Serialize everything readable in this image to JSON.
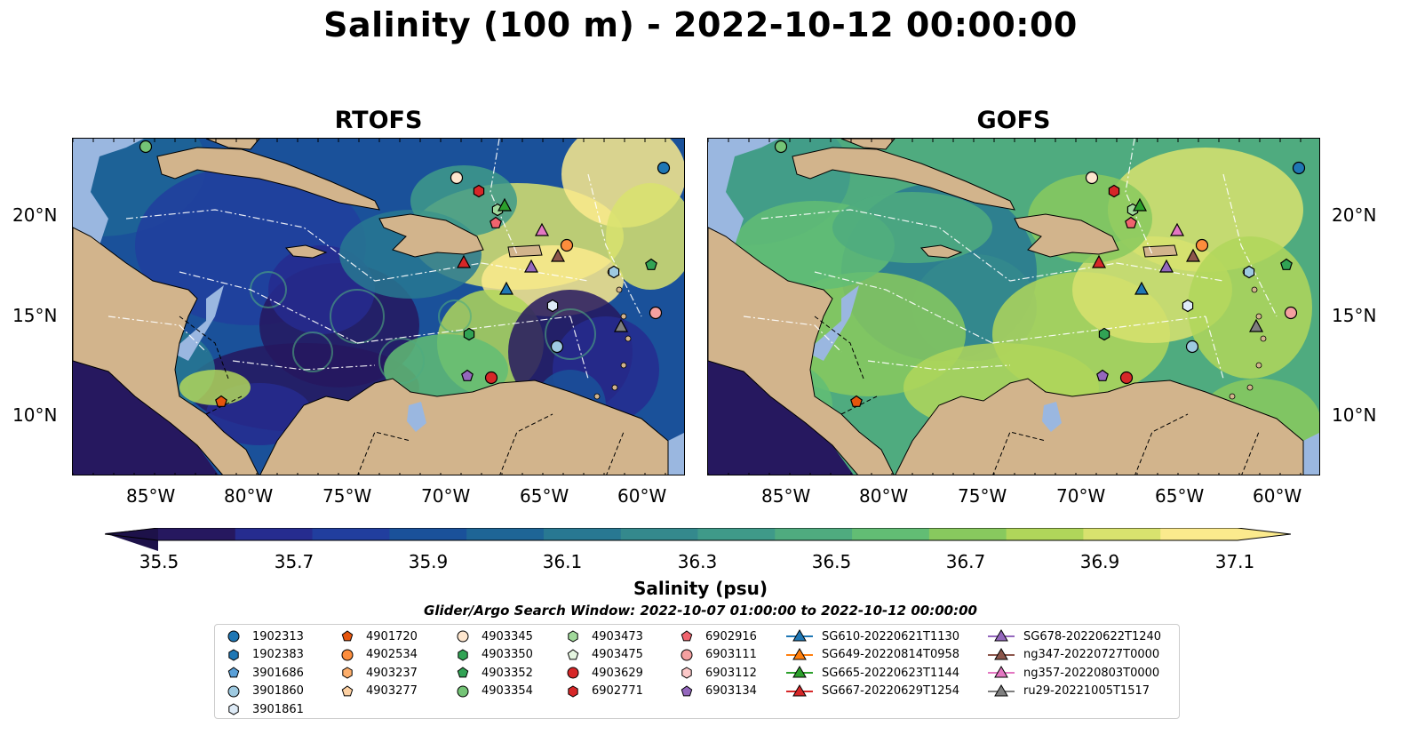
{
  "title": "Salinity (100 m) - 2022-10-12 00:00:00",
  "panels": [
    {
      "title": "RTOFS"
    },
    {
      "title": "GOFS"
    }
  ],
  "lat_labels": [
    "20°N",
    "15°N",
    "10°N"
  ],
  "lon_labels": [
    "85°W",
    "80°W",
    "75°W",
    "70°W",
    "65°W",
    "60°W"
  ],
  "colorbar": {
    "ticks": [
      "35.5",
      "35.7",
      "35.9",
      "36.1",
      "36.3",
      "36.5",
      "36.7",
      "36.9",
      "37.1"
    ],
    "label": "Salinity (psu)",
    "colors": [
      "#26185f",
      "#262c8f",
      "#213e9e",
      "#1a519a",
      "#1e6596",
      "#287892",
      "#34898d",
      "#3f9a89",
      "#4fab7f",
      "#62bd74",
      "#88c95e",
      "#b0d65a",
      "#d8e26e",
      "#fbea8d"
    ]
  },
  "search_window": "Glider/Argo Search Window: 2022-10-07 01:00:00 to 2022-10-12 00:00:00",
  "legend": {
    "columns": [
      [
        {
          "label": "1902313",
          "marker": "circle",
          "color": "#1f77b4"
        },
        {
          "label": "1902383",
          "marker": "hexagon",
          "color": "#1f77b4"
        },
        {
          "label": "3901686",
          "marker": "pentagon",
          "color": "#5aa0d8"
        },
        {
          "label": "3901860",
          "marker": "circle",
          "color": "#9ecae1"
        },
        {
          "label": "3901861",
          "marker": "hexagon",
          "color": "#deebf7"
        }
      ],
      [
        {
          "label": "4901720",
          "marker": "pentagon",
          "color": "#e6550d"
        },
        {
          "label": "4902534",
          "marker": "circle",
          "color": "#fd8d3c"
        },
        {
          "label": "4903237",
          "marker": "hexagon",
          "color": "#fdae6b"
        },
        {
          "label": "4903277",
          "marker": "pentagon",
          "color": "#fdd0a2"
        }
      ],
      [
        {
          "label": "4903345",
          "marker": "circle",
          "color": "#fee6ce"
        },
        {
          "label": "4903350",
          "marker": "hexagon",
          "color": "#31a354"
        },
        {
          "label": "4903352",
          "marker": "pentagon",
          "color": "#31a354"
        },
        {
          "label": "4903354",
          "marker": "circle",
          "color": "#74c476"
        }
      ],
      [
        {
          "label": "4903473",
          "marker": "hexagon",
          "color": "#a1d99b"
        },
        {
          "label": "4903475",
          "marker": "pentagon",
          "color": "#e5f5e0"
        },
        {
          "label": "4903629",
          "marker": "circle",
          "color": "#d62728"
        },
        {
          "label": "6902771",
          "marker": "hexagon",
          "color": "#d62728"
        }
      ],
      [
        {
          "label": "6902916",
          "marker": "pentagon",
          "color": "#f0646e"
        },
        {
          "label": "6903111",
          "marker": "circle",
          "color": "#f4a0a0"
        },
        {
          "label": "6903112",
          "marker": "hexagon",
          "color": "#fcc8c8"
        },
        {
          "label": "6903134",
          "marker": "pentagon",
          "color": "#9467bd"
        }
      ],
      [
        {
          "label": "SG610-20220621T1130",
          "marker": "triangle-line",
          "color": "#1f77b4"
        },
        {
          "label": "SG649-20220814T0958",
          "marker": "triangle-line",
          "color": "#ff7f0e"
        },
        {
          "label": "SG665-20220623T1144",
          "marker": "triangle-line",
          "color": "#2ca02c"
        },
        {
          "label": "SG667-20220629T1254",
          "marker": "triangle-line",
          "color": "#d62728"
        }
      ],
      [
        {
          "label": "SG678-20220622T1240",
          "marker": "triangle-line",
          "color": "#9467bd"
        },
        {
          "label": "ng347-20220727T0000",
          "marker": "triangle-line",
          "color": "#8c564b"
        },
        {
          "label": "ng357-20220803T0000",
          "marker": "triangle-line",
          "color": "#e377c2"
        },
        {
          "label": "ru29-20221005T1517",
          "marker": "triangle-line",
          "color": "#7f7f7f"
        }
      ]
    ]
  },
  "map_colors": {
    "land": "#d2b48c",
    "lake": "#9ab7e0",
    "deep": "#26185f"
  }
}
